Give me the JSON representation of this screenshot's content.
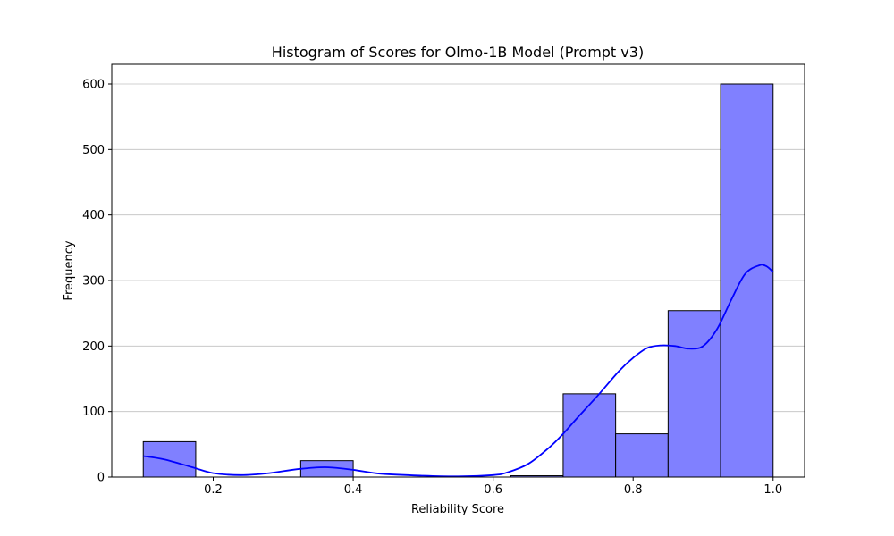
{
  "chart_data": {
    "type": "bar",
    "title": "Histogram of Scores for Olmo-1B Model (Prompt v3)",
    "xlabel": "Reliability Score",
    "ylabel": "Frequency",
    "xlim": [
      0.055,
      1.045
    ],
    "ylim": [
      0,
      630
    ],
    "xticks": [
      0.2,
      0.4,
      0.6,
      0.8,
      1.0
    ],
    "xtick_labels": [
      "0.2",
      "0.4",
      "0.6",
      "0.8",
      "1.0"
    ],
    "yticks": [
      0,
      100,
      200,
      300,
      400,
      500,
      600
    ],
    "ytick_labels": [
      "0",
      "100",
      "200",
      "300",
      "400",
      "500",
      "600"
    ],
    "grid": "y",
    "bins": [
      {
        "x0": 0.1,
        "x1": 0.175,
        "value": 54
      },
      {
        "x0": 0.175,
        "x1": 0.25,
        "value": 0
      },
      {
        "x0": 0.25,
        "x1": 0.325,
        "value": 0
      },
      {
        "x0": 0.325,
        "x1": 0.4,
        "value": 25
      },
      {
        "x0": 0.4,
        "x1": 0.475,
        "value": 0
      },
      {
        "x0": 0.475,
        "x1": 0.55,
        "value": 0
      },
      {
        "x0": 0.55,
        "x1": 0.625,
        "value": 0
      },
      {
        "x0": 0.625,
        "x1": 0.7,
        "value": 2
      },
      {
        "x0": 0.7,
        "x1": 0.775,
        "value": 127
      },
      {
        "x0": 0.775,
        "x1": 0.85,
        "value": 66
      },
      {
        "x0": 0.85,
        "x1": 0.925,
        "value": 254
      },
      {
        "x0": 0.925,
        "x1": 1.0,
        "value": 600
      }
    ],
    "kde": {
      "x": [
        0.1,
        0.13,
        0.17,
        0.2,
        0.24,
        0.28,
        0.32,
        0.36,
        0.4,
        0.44,
        0.5,
        0.55,
        0.6,
        0.62,
        0.65,
        0.68,
        0.7,
        0.72,
        0.75,
        0.78,
        0.8,
        0.82,
        0.84,
        0.86,
        0.88,
        0.9,
        0.92,
        0.94,
        0.96,
        0.98,
        0.99,
        1.0
      ],
      "y": [
        32,
        27,
        15,
        6,
        3,
        6,
        12,
        15,
        11,
        5,
        2,
        1,
        3,
        7,
        20,
        45,
        66,
        90,
        125,
        162,
        182,
        197,
        201,
        200,
        196,
        200,
        226,
        270,
        310,
        323,
        322,
        313
      ]
    },
    "colors": {
      "bar_fill": "#8080ff",
      "bar_edge": "#000000",
      "kde_line": "#0000ff",
      "grid": "#c0c0c0"
    }
  }
}
